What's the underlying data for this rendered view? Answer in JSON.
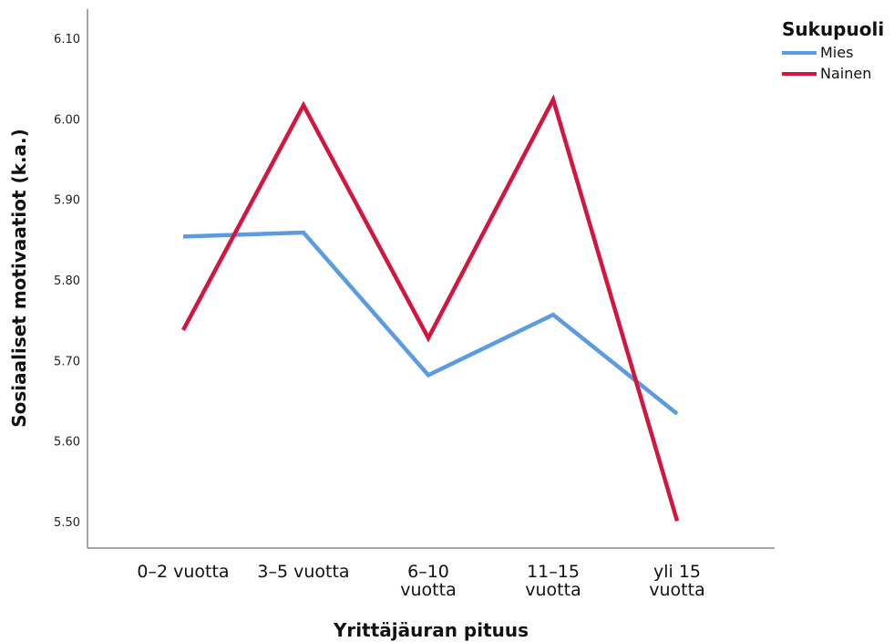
{
  "chart_data": {
    "type": "line",
    "xlabel": "Yrittäjäuran pituus",
    "ylabel": "Sosiaaliset motivaatiot (k.a.)",
    "categories": [
      [
        "0–2 vuotta"
      ],
      [
        "3–5 vuotta"
      ],
      [
        "6–10",
        "vuotta"
      ],
      [
        "11–15",
        "vuotta"
      ],
      [
        "yli 15",
        "vuotta"
      ]
    ],
    "ylim": [
      5.5,
      6.1
    ],
    "yticks": [
      "5.50",
      "5.60",
      "5.70",
      "5.80",
      "5.90",
      "6.00",
      "6.10"
    ],
    "grid": false,
    "legend": {
      "title": "Sukupuoli",
      "placement": "top-right"
    },
    "series": [
      {
        "name": "Mies",
        "color": "#5b9be0",
        "values": [
          5.855,
          5.86,
          5.683,
          5.758,
          5.635
        ]
      },
      {
        "name": "Nainen",
        "color": "#d2163f",
        "values": [
          5.739,
          6.018,
          5.729,
          6.025,
          5.502
        ]
      }
    ]
  }
}
